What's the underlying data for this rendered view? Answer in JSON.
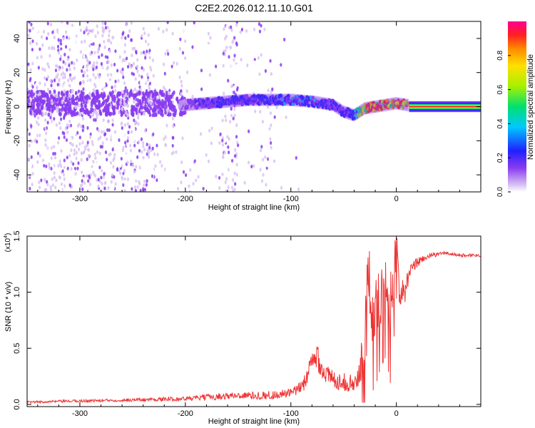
{
  "figure_title": "C2E2.2026.012.11.10.G01",
  "colorbar": {
    "label": "Normalized spectral amplitude",
    "ticks": [
      "0.0",
      "0.2",
      "0.4",
      "0.6",
      "0.8"
    ],
    "tick_values": [
      0.0,
      0.2,
      0.4,
      0.6,
      0.8
    ],
    "range": [
      0,
      1
    ]
  },
  "chart_data": [
    {
      "type": "heatmap",
      "title": "C2E2.2026.012.11.10.G01",
      "xlabel": "Height of straight line (km)",
      "ylabel": "Frequency (Hz)",
      "xlim": [
        -350,
        80
      ],
      "ylim": [
        -50,
        50
      ],
      "xticks": [
        -300,
        -200,
        -100,
        0
      ],
      "xtick_labels": [
        "-300",
        "-200",
        "-100",
        "0"
      ],
      "yticks": [
        -40,
        -20,
        0,
        20,
        40
      ],
      "ytick_labels": [
        "-40",
        "-20",
        "0",
        "20",
        "40"
      ],
      "colormap": "rainbow (purple low to red high)",
      "ridge": {
        "description": "dominant frequency ridge vs height",
        "x": [
          -200,
          -180,
          -160,
          -140,
          -120,
          -100,
          -80,
          -60,
          -50,
          -40,
          -30,
          -20,
          -10,
          0,
          10,
          20,
          40,
          60,
          80
        ],
        "frequency_hz": [
          1,
          2,
          3,
          4,
          4,
          4,
          3,
          1,
          -3,
          -5,
          -1,
          0,
          1,
          2,
          1,
          0,
          0,
          0,
          0
        ],
        "amplitude": [
          0.15,
          0.25,
          0.3,
          0.3,
          0.35,
          0.35,
          0.35,
          0.3,
          0.3,
          0.35,
          0.9,
          0.95,
          0.95,
          0.9,
          0.95,
          0.95,
          0.95,
          0.95,
          0.95
        ]
      },
      "background_noise": {
        "scattered_across_frequency_below_km": -100,
        "noise_bands_km": [
          -340,
          -260,
          -240,
          -200,
          -160,
          -150,
          -120
        ]
      }
    },
    {
      "type": "line",
      "xlabel": "Height of straight line (km)",
      "ylabel": "SNR (10 * v/v)",
      "ylabel_multiplier": "(x10",
      "ylabel_multiplier_exp": "4",
      "ylabel_multiplier_close": ")",
      "xlim": [
        -350,
        80
      ],
      "ylim": [
        -0.02,
        1.5
      ],
      "xticks": [
        -300,
        -200,
        -100,
        0
      ],
      "xtick_labels": [
        "-300",
        "-200",
        "-100",
        "0"
      ],
      "yticks": [
        0.0,
        0.5,
        1.0,
        1.5
      ],
      "ytick_labels": [
        "0.0",
        "0.5",
        "1.0",
        "1.5"
      ],
      "series": [
        {
          "name": "SNR",
          "color": "#ee3333",
          "x": [
            -350,
            -300,
            -250,
            -200,
            -170,
            -150,
            -120,
            -100,
            -90,
            -80,
            -75,
            -70,
            -60,
            -50,
            -40,
            -35,
            -30,
            -27,
            -24,
            -20,
            -15,
            -10,
            -5,
            0,
            3,
            8,
            12,
            18,
            25,
            35,
            45,
            60,
            70,
            80
          ],
          "values": [
            0.02,
            0.03,
            0.04,
            0.05,
            0.07,
            0.08,
            0.08,
            0.1,
            0.15,
            0.35,
            0.45,
            0.3,
            0.22,
            0.2,
            0.18,
            0.25,
            0.7,
            1.4,
            0.85,
            0.9,
            0.95,
            1.05,
            0.9,
            1.45,
            1.0,
            1.0,
            1.15,
            1.25,
            1.3,
            1.33,
            1.35,
            1.33,
            1.33,
            1.33
          ],
          "noise_amplitude": [
            0.01,
            0.012,
            0.015,
            0.02,
            0.03,
            0.03,
            0.04,
            0.04,
            0.06,
            0.12,
            0.14,
            0.1,
            0.08,
            0.08,
            0.08,
            0.12,
            0.3,
            0.25,
            0.3,
            0.3,
            0.25,
            0.25,
            0.3,
            0.2,
            0.12,
            0.1,
            0.08,
            0.05,
            0.03,
            0.02,
            0.015,
            0.015,
            0.015,
            0.015
          ]
        }
      ]
    }
  ]
}
